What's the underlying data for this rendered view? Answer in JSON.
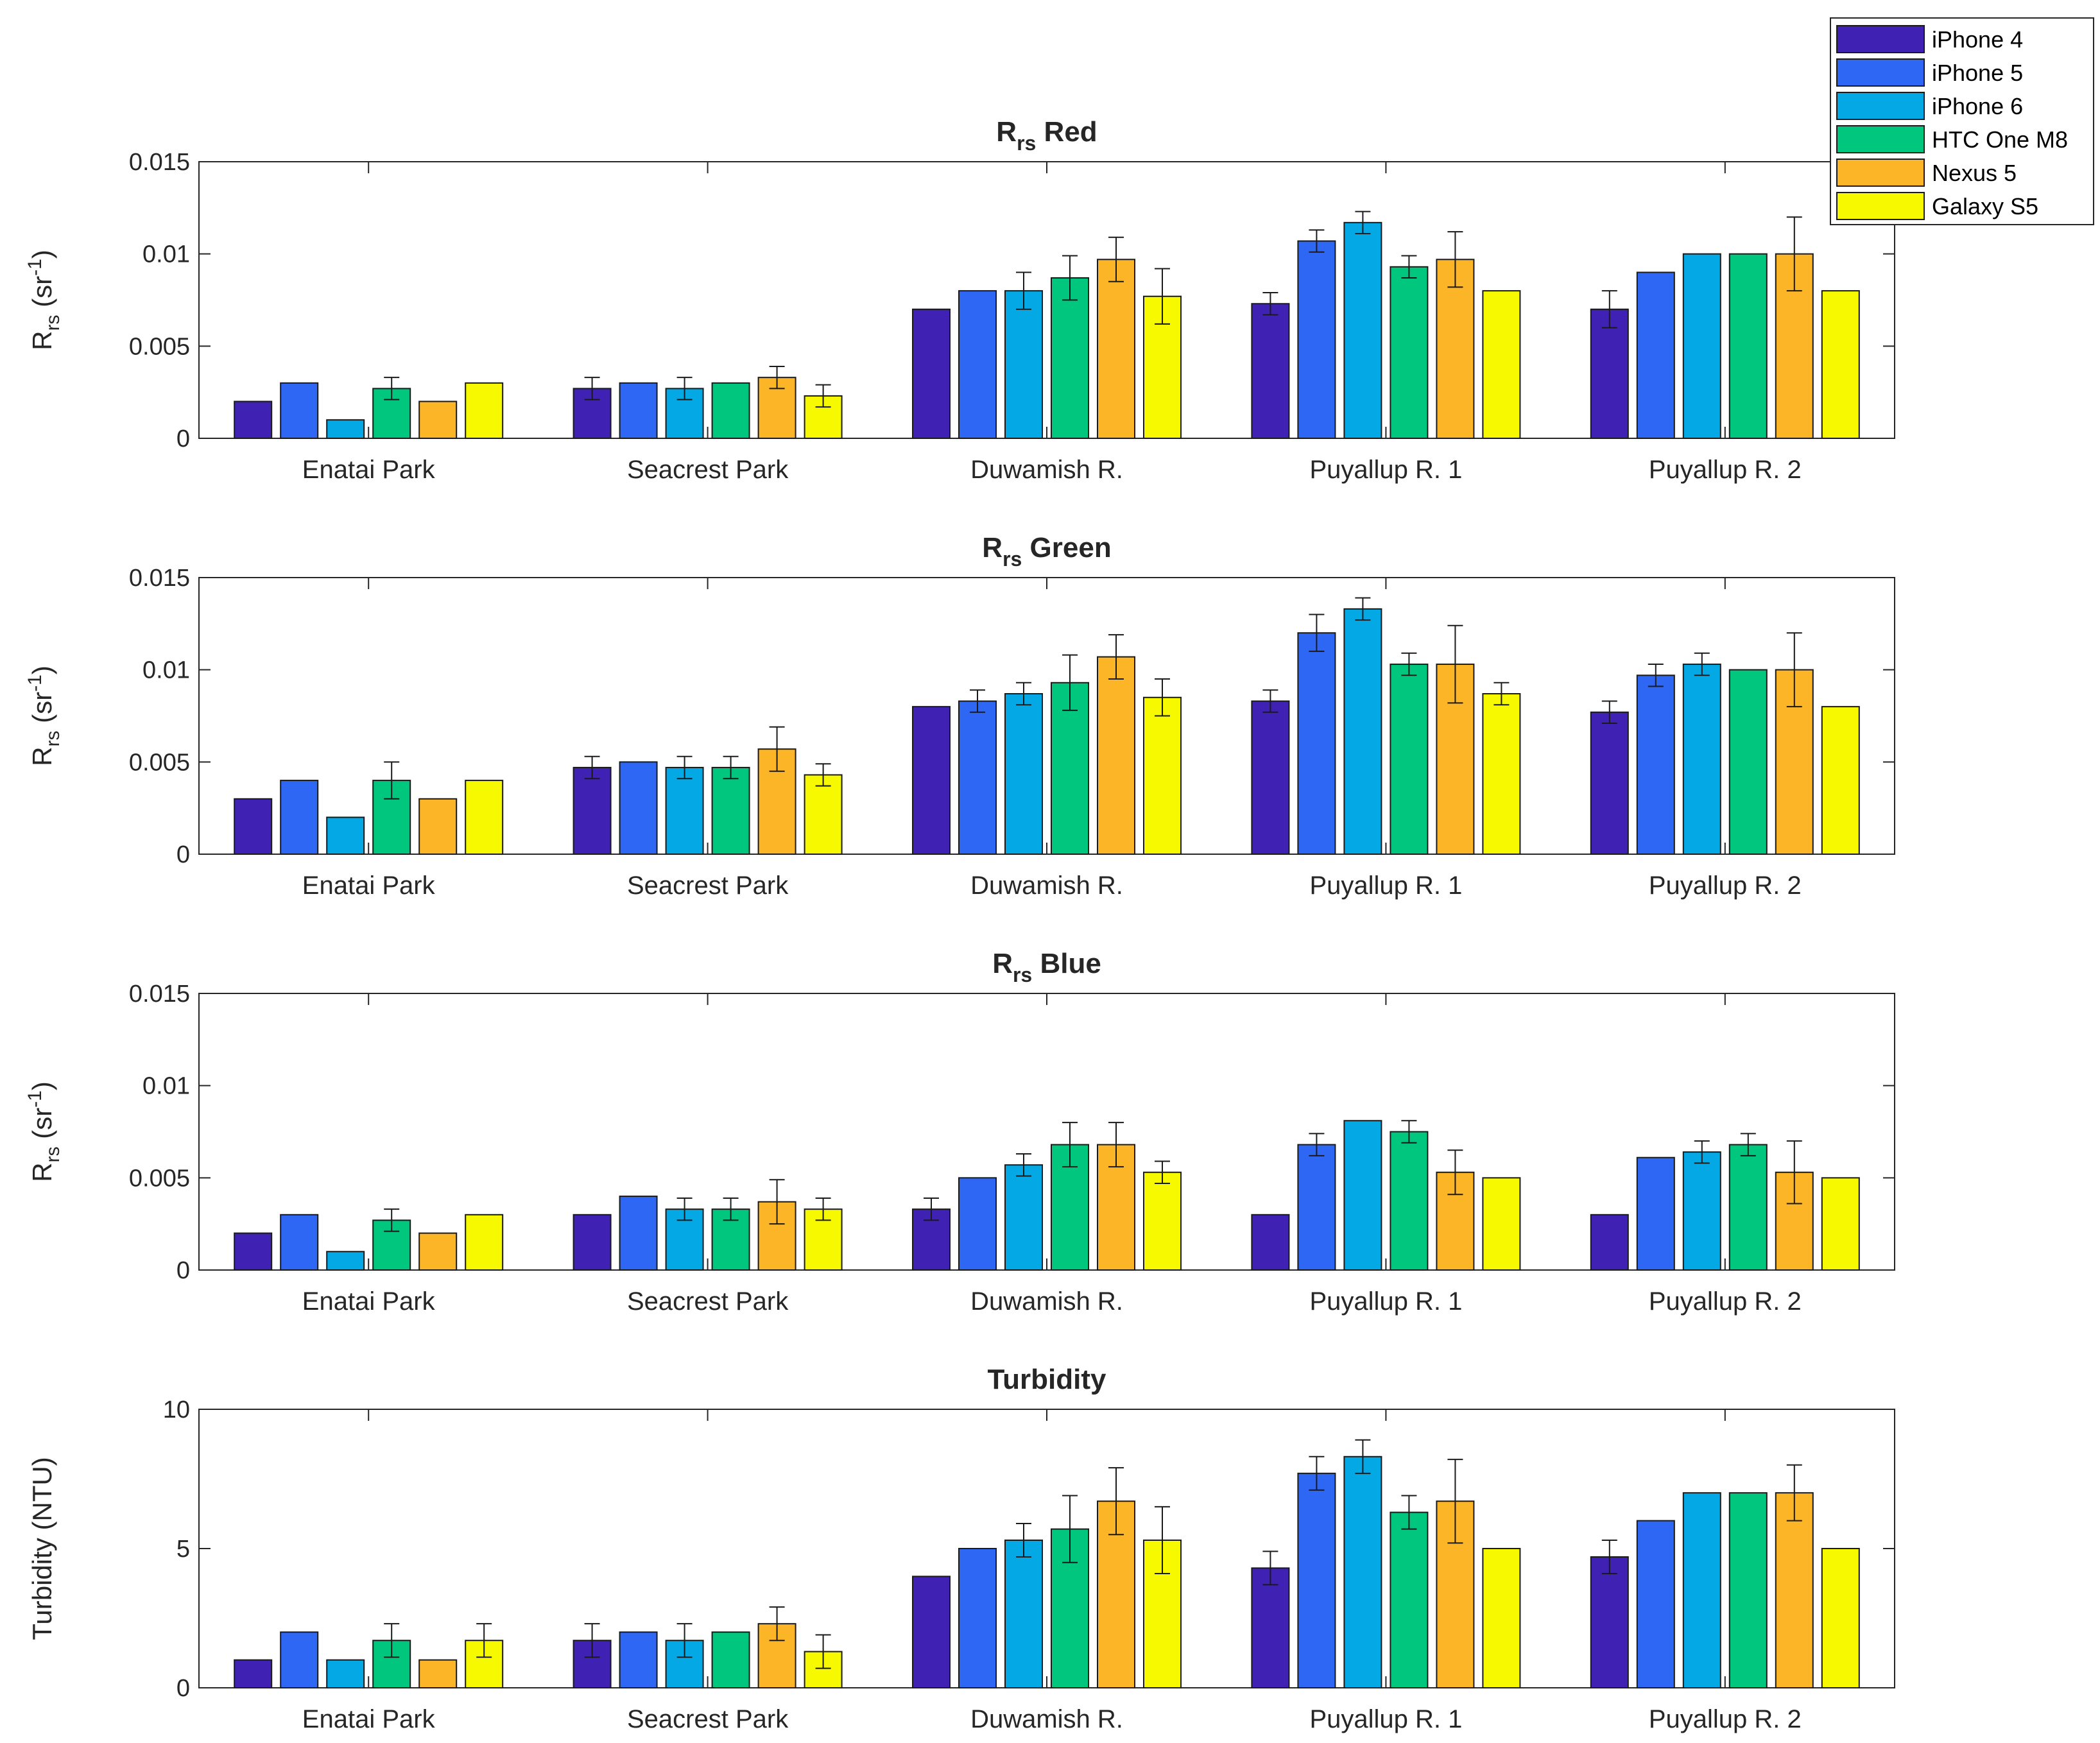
{
  "chart_data": [
    {
      "type": "bar",
      "title": "R",
      "title_sub": "rs",
      "title_rest": " Red",
      "ylabel": "R",
      "ylabel_sub": "rs",
      "ylabel_rest": " (sr",
      "ylabel_sup": "-1",
      "ylabel_close": ")",
      "ylim": [
        0,
        0.015
      ],
      "yticks": [
        0,
        0.005,
        0.01,
        0.015
      ],
      "ytick_labels": [
        "0",
        "0.005",
        "0.01",
        "0.015"
      ],
      "categories": [
        "Enatai Park",
        "Seacrest Park",
        "Duwamish R.",
        "Puyallup R. 1",
        "Puyallup R. 2"
      ],
      "series": [
        {
          "name": "iPhone 4",
          "values": [
            0.002,
            0.0027,
            0.007,
            0.0073,
            0.007
          ],
          "errors": [
            0,
            0.0006,
            0,
            0.0006,
            0.001
          ]
        },
        {
          "name": "iPhone 5",
          "values": [
            0.003,
            0.003,
            0.008,
            0.0107,
            0.009
          ],
          "errors": [
            0,
            0,
            0,
            0.0006,
            0
          ]
        },
        {
          "name": "iPhone 6",
          "values": [
            0.001,
            0.0027,
            0.008,
            0.0117,
            0.01
          ],
          "errors": [
            0,
            0.0006,
            0.001,
            0.0006,
            0
          ]
        },
        {
          "name": "HTC One M8",
          "values": [
            0.0027,
            0.003,
            0.0087,
            0.0093,
            0.01
          ],
          "errors": [
            0.0006,
            0,
            0.0012,
            0.0006,
            0
          ]
        },
        {
          "name": "Nexus 5",
          "values": [
            0.002,
            0.0033,
            0.0097,
            0.0097,
            0.01
          ],
          "errors": [
            0,
            0.0006,
            0.0012,
            0.0015,
            0.002
          ]
        },
        {
          "name": "Galaxy S5",
          "values": [
            0.003,
            0.0023,
            0.0077,
            0.008,
            0.008
          ],
          "errors": [
            0,
            0.0006,
            0.0015,
            0,
            0
          ]
        }
      ]
    },
    {
      "type": "bar",
      "title": "R",
      "title_sub": "rs",
      "title_rest": " Green",
      "ylabel": "R",
      "ylabel_sub": "rs",
      "ylabel_rest": " (sr",
      "ylabel_sup": "-1",
      "ylabel_close": ")",
      "ylim": [
        0,
        0.015
      ],
      "yticks": [
        0,
        0.005,
        0.01,
        0.015
      ],
      "ytick_labels": [
        "0",
        "0.005",
        "0.01",
        "0.015"
      ],
      "categories": [
        "Enatai Park",
        "Seacrest Park",
        "Duwamish R.",
        "Puyallup R. 1",
        "Puyallup R. 2"
      ],
      "series": [
        {
          "name": "iPhone 4",
          "values": [
            0.003,
            0.0047,
            0.008,
            0.0083,
            0.0077
          ],
          "errors": [
            0,
            0.0006,
            0,
            0.0006,
            0.0006
          ]
        },
        {
          "name": "iPhone 5",
          "values": [
            0.004,
            0.005,
            0.0083,
            0.012,
            0.0097
          ],
          "errors": [
            0,
            0,
            0.0006,
            0.001,
            0.0006
          ]
        },
        {
          "name": "iPhone 6",
          "values": [
            0.002,
            0.0047,
            0.0087,
            0.0133,
            0.0103
          ],
          "errors": [
            0,
            0.0006,
            0.0006,
            0.0006,
            0.0006
          ]
        },
        {
          "name": "HTC One M8",
          "values": [
            0.004,
            0.0047,
            0.0093,
            0.0103,
            0.01
          ],
          "errors": [
            0.001,
            0.0006,
            0.0015,
            0.0006,
            0
          ]
        },
        {
          "name": "Nexus 5",
          "values": [
            0.003,
            0.0057,
            0.0107,
            0.0103,
            0.01
          ],
          "errors": [
            0,
            0.0012,
            0.0012,
            0.0021,
            0.002
          ]
        },
        {
          "name": "Galaxy S5",
          "values": [
            0.004,
            0.0043,
            0.0085,
            0.0087,
            0.008
          ],
          "errors": [
            0,
            0.0006,
            0.001,
            0.0006,
            0
          ]
        }
      ]
    },
    {
      "type": "bar",
      "title": "R",
      "title_sub": "rs",
      "title_rest": " Blue",
      "ylabel": "R",
      "ylabel_sub": "rs",
      "ylabel_rest": " (sr",
      "ylabel_sup": "-1",
      "ylabel_close": ")",
      "ylim": [
        0,
        0.015
      ],
      "yticks": [
        0,
        0.005,
        0.01,
        0.015
      ],
      "ytick_labels": [
        "0",
        "0.005",
        "0.01",
        "0.015"
      ],
      "categories": [
        "Enatai Park",
        "Seacrest Park",
        "Duwamish R.",
        "Puyallup R. 1",
        "Puyallup R. 2"
      ],
      "series": [
        {
          "name": "iPhone 4",
          "values": [
            0.002,
            0.003,
            0.0033,
            0.003,
            0.003
          ],
          "errors": [
            0,
            0,
            0.0006,
            0,
            0
          ]
        },
        {
          "name": "iPhone 5",
          "values": [
            0.003,
            0.004,
            0.005,
            0.0068,
            0.0061
          ],
          "errors": [
            0,
            0,
            0,
            0.0006,
            0
          ]
        },
        {
          "name": "iPhone 6",
          "values": [
            0.001,
            0.0033,
            0.0057,
            0.0081,
            0.0064
          ],
          "errors": [
            0,
            0.0006,
            0.0006,
            0,
            0.0006
          ]
        },
        {
          "name": "HTC One M8",
          "values": [
            0.0027,
            0.0033,
            0.0068,
            0.0075,
            0.0068
          ],
          "errors": [
            0.0006,
            0.0006,
            0.0012,
            0.0006,
            0.0006
          ]
        },
        {
          "name": "Nexus 5",
          "values": [
            0.002,
            0.0037,
            0.0068,
            0.0053,
            0.0053
          ],
          "errors": [
            0,
            0.0012,
            0.0012,
            0.0012,
            0.0017
          ]
        },
        {
          "name": "Galaxy S5",
          "values": [
            0.003,
            0.0033,
            0.0053,
            0.005,
            0.005
          ],
          "errors": [
            0,
            0.0006,
            0.0006,
            0,
            0
          ]
        }
      ]
    },
    {
      "type": "bar",
      "title": "Turbidity",
      "title_sub": "",
      "title_rest": "",
      "ylabel": "Turbidity (NTU)",
      "ylabel_sub": "",
      "ylabel_rest": "",
      "ylabel_sup": "",
      "ylabel_close": "",
      "ylim": [
        0,
        10
      ],
      "yticks": [
        0,
        5,
        10
      ],
      "ytick_labels": [
        "0",
        "5",
        "10"
      ],
      "categories": [
        "Enatai Park",
        "Seacrest Park",
        "Duwamish R.",
        "Puyallup R. 1",
        "Puyallup R. 2"
      ],
      "series": [
        {
          "name": "iPhone 4",
          "values": [
            1.0,
            1.7,
            4.0,
            4.3,
            4.7
          ],
          "errors": [
            0,
            0.6,
            0,
            0.6,
            0.6
          ]
        },
        {
          "name": "iPhone 5",
          "values": [
            2.0,
            2.0,
            5.0,
            7.7,
            6.0
          ],
          "errors": [
            0,
            0,
            0,
            0.6,
            0
          ]
        },
        {
          "name": "iPhone 6",
          "values": [
            1.0,
            1.7,
            5.3,
            8.3,
            7.0
          ],
          "errors": [
            0,
            0.6,
            0.6,
            0.6,
            0
          ]
        },
        {
          "name": "HTC One M8",
          "values": [
            1.7,
            2.0,
            5.7,
            6.3,
            7.0
          ],
          "errors": [
            0.6,
            0,
            1.2,
            0.6,
            0
          ]
        },
        {
          "name": "Nexus 5",
          "values": [
            1.0,
            2.3,
            6.7,
            6.7,
            7.0
          ],
          "errors": [
            0,
            0.6,
            1.2,
            1.5,
            1.0
          ]
        },
        {
          "name": "Galaxy S5",
          "values": [
            1.7,
            1.3,
            5.3,
            5.0,
            5.0
          ],
          "errors": [
            0.6,
            0.6,
            1.2,
            0,
            0
          ]
        }
      ]
    }
  ],
  "legend": {
    "placement": "top-right",
    "entries": [
      {
        "name": "iPhone 4",
        "color": "#3f22b4"
      },
      {
        "name": "iPhone 5",
        "color": "#2f67f5"
      },
      {
        "name": "iPhone 6",
        "color": "#04a8e4"
      },
      {
        "name": "HTC One M8",
        "color": "#00c77d"
      },
      {
        "name": "Nexus 5",
        "color": "#fbb527"
      },
      {
        "name": "Galaxy S5",
        "color": "#f6f900"
      }
    ]
  }
}
